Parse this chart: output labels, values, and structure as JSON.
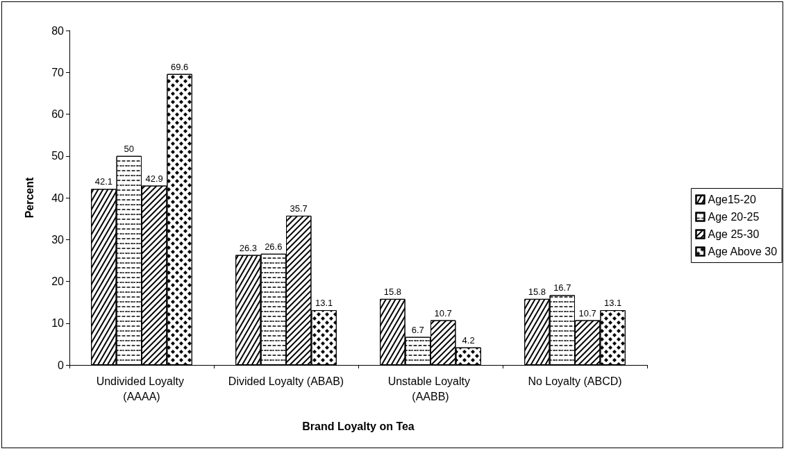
{
  "chart_data": {
    "type": "bar",
    "xlabel": "Brand Loyalty on Tea",
    "ylabel": "Percent",
    "categories": [
      "Undivided Loyalty (AAAA)",
      "Divided Loyalty (ABAB)",
      "Unstable Loyalty (AABB)",
      "No Loyalty (ABCD)"
    ],
    "series": [
      {
        "name": "Age15-20",
        "color": "#ffffff",
        "values": [
          42.1,
          26.3,
          15.8,
          15.8
        ]
      },
      {
        "name": "Age 20-25",
        "color": "#ffffff",
        "values": [
          50,
          26.6,
          6.7,
          16.7
        ]
      },
      {
        "name": "Age 25-30",
        "color": "#ffffff",
        "values": [
          42.9,
          35.7,
          10.7,
          10.7
        ]
      },
      {
        "name": "Age Above 30",
        "color": "#ffffff",
        "values": [
          69.6,
          13.1,
          4.2,
          13.1
        ]
      }
    ],
    "ylim": [
      0,
      80
    ],
    "yticks": [
      0,
      10,
      20,
      30,
      40,
      50,
      60,
      70,
      80
    ],
    "grid": false,
    "legend": "right",
    "data_labels": true
  }
}
